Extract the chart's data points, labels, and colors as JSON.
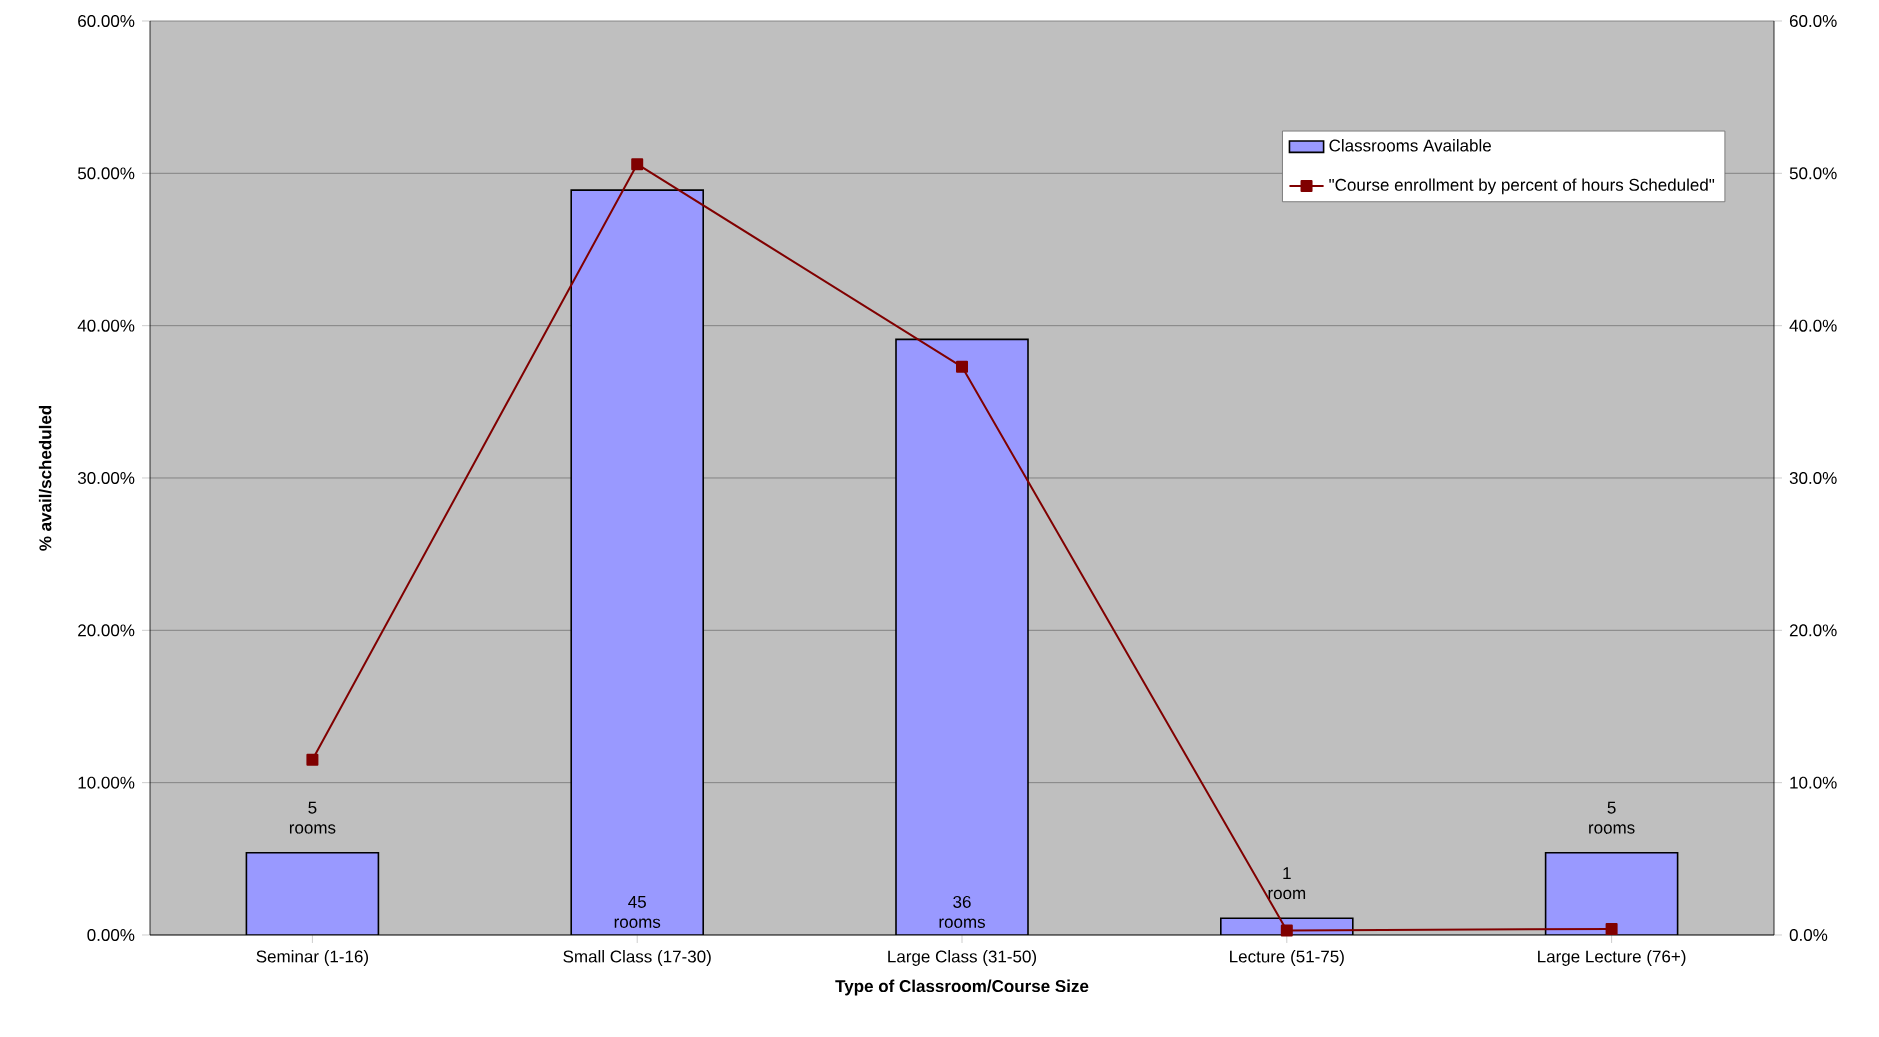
{
  "chart_data": {
    "type": "bar",
    "xlabel": "Type of Classroom/Course Size",
    "ylabel": "% avail/scheduled",
    "categories": [
      "Seminar (1-16)",
      "Small Class (17-30)",
      "Large Class (31-50)",
      "Lecture (51-75)",
      "Large Lecture (76+)"
    ],
    "series": [
      {
        "name": "Classrooms Available",
        "type": "bar",
        "color": "#9999ff",
        "values": [
          5.4,
          48.9,
          39.1,
          1.1,
          5.4
        ]
      },
      {
        "name": "\"Course enrollment by percent of hours Scheduled\"",
        "type": "line",
        "axis": "y2",
        "color": "#800000",
        "marker": "square",
        "values": [
          11.5,
          50.6,
          37.3,
          0.3,
          0.4
        ]
      }
    ],
    "ylim": [
      0,
      60
    ],
    "yticks": [
      {
        "value": 0,
        "label": "0.00%"
      },
      {
        "value": 10,
        "label": "10.00%"
      },
      {
        "value": 20,
        "label": "20.00%"
      },
      {
        "value": 30,
        "label": "30.00%"
      },
      {
        "value": 40,
        "label": "40.00%"
      },
      {
        "value": 50,
        "label": "50.00%"
      },
      {
        "value": 60,
        "label": "60.00%"
      }
    ],
    "y2lim": [
      0,
      60
    ],
    "y2ticks": [
      {
        "value": 0,
        "label": "0.0%"
      },
      {
        "value": 10,
        "label": "10.0%"
      },
      {
        "value": 20,
        "label": "20.0%"
      },
      {
        "value": 30,
        "label": "30.0%"
      },
      {
        "value": 40,
        "label": "40.0%"
      },
      {
        "value": 50,
        "label": "50.0%"
      },
      {
        "value": 60,
        "label": "60.0%"
      }
    ],
    "annotations": [
      "5 rooms",
      "45 rooms",
      "36 rooms",
      "1 room",
      "5 rooms"
    ],
    "grid": "y",
    "legend": "top right"
  }
}
